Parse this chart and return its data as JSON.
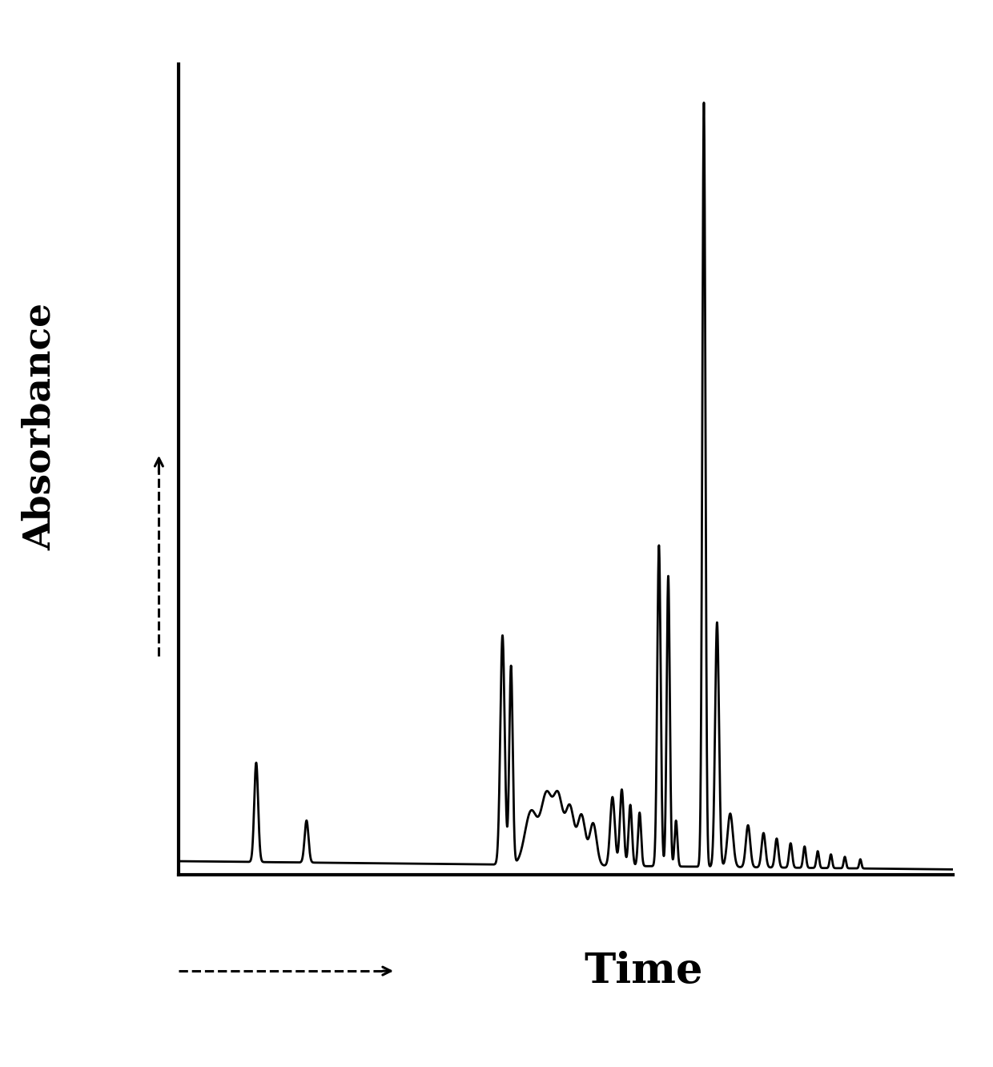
{
  "ylabel": "Absorbance",
  "xlabel": "Time",
  "background_color": "#ffffff",
  "line_color": "#000000",
  "ylabel_fontsize": 34,
  "xlabel_fontsize": 38,
  "line_width": 2.0,
  "spine_linewidth": 3.0
}
